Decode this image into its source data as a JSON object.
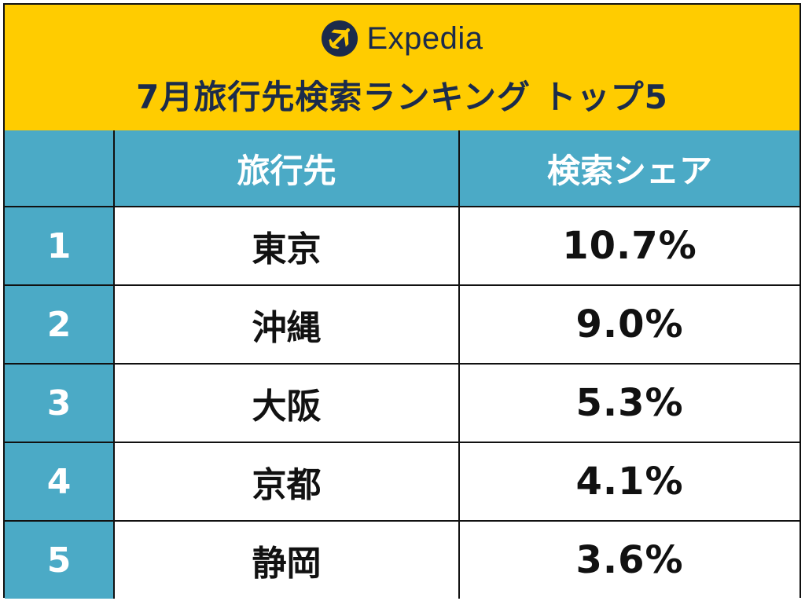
{
  "brand": {
    "name": "Expedia",
    "logo_icon": "airplane-icon",
    "colors": {
      "header_bg": "#FFCC00",
      "brand_navy": "#1B2B4B",
      "table_accent": "#4BAAC6"
    }
  },
  "title": "7月旅行先検索ランキング トップ5",
  "table": {
    "columns": {
      "rank": "",
      "destination": "旅行先",
      "share": "検索シェア"
    },
    "rows": [
      {
        "rank": "1",
        "destination": "東京",
        "share": "10.7%"
      },
      {
        "rank": "2",
        "destination": "沖縄",
        "share": "9.0%"
      },
      {
        "rank": "3",
        "destination": "大阪",
        "share": "5.3%"
      },
      {
        "rank": "4",
        "destination": "京都",
        "share": "4.1%"
      },
      {
        "rank": "5",
        "destination": "静岡",
        "share": "3.6%"
      }
    ]
  }
}
